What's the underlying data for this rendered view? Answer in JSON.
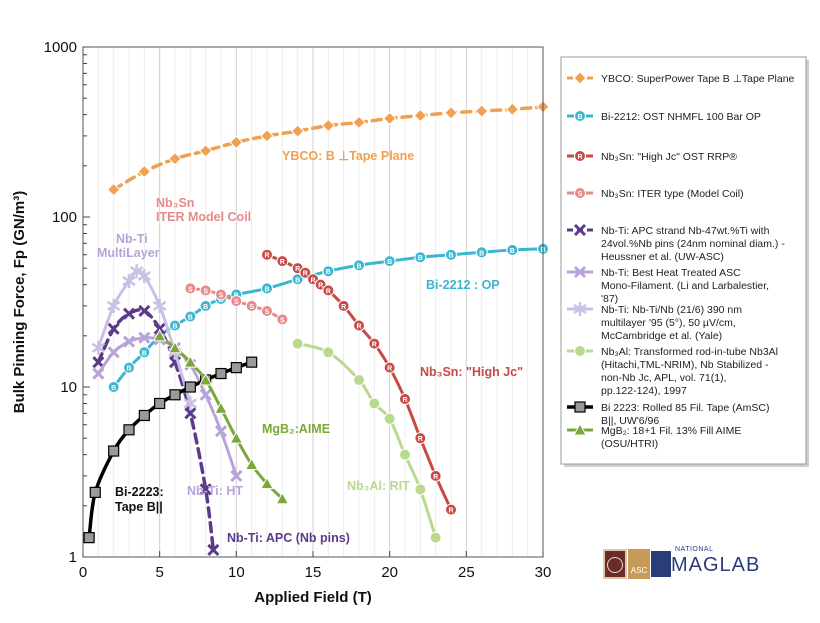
{
  "chart_data": {
    "type": "line",
    "xlabel": "Applied Field (T)",
    "ylabel": "Bulk Pinning Force, Fp (GN/m³)",
    "xlim": [
      0,
      30
    ],
    "ylim": [
      1,
      1000
    ],
    "yscale": "log",
    "x_ticks": [
      "0",
      "5",
      "10",
      "15",
      "20",
      "25",
      "30"
    ],
    "y_ticks": [
      "1",
      "10",
      "100",
      "1000"
    ],
    "grid": "vertical",
    "legend_position": "right",
    "series": [
      {
        "name": "YBCO: SuperPower Tape B ⊥Tape Plane",
        "color": "#F0A050",
        "line": "dashed",
        "marker": "Y",
        "x": [
          2,
          4,
          6,
          8,
          10,
          12,
          14,
          16,
          18,
          20,
          22,
          24,
          26,
          28,
          30
        ],
        "y": [
          145,
          185,
          220,
          245,
          275,
          300,
          320,
          345,
          360,
          380,
          395,
          410,
          420,
          430,
          445
        ]
      },
      {
        "name": "Bi-2212: OST NHMFL 100 Bar OP",
        "color": "#3BB5D0",
        "line": "solid",
        "marker": "B",
        "x": [
          2,
          3,
          4,
          5,
          6,
          7,
          8,
          9,
          10,
          12,
          14,
          16,
          18,
          20,
          22,
          24,
          26,
          28,
          30
        ],
        "y": [
          10,
          13,
          16,
          20,
          23,
          26,
          30,
          33,
          35,
          38,
          43,
          48,
          52,
          55,
          58,
          60,
          62,
          64,
          65
        ]
      },
      {
        "name": "Nb₃Sn: \"High Jc\" OST RRP®",
        "color": "#C84A45",
        "line": "solid",
        "marker": "R",
        "x": [
          12,
          13,
          14,
          14.5,
          15,
          15.5,
          16,
          17,
          18,
          19,
          20,
          21,
          22,
          23,
          24
        ],
        "y": [
          60,
          55,
          50,
          47,
          43,
          40,
          37,
          30,
          23,
          18,
          13,
          8.5,
          5,
          3,
          1.9
        ]
      },
      {
        "name": "Nb₃Sn: ITER type (Model Coil)",
        "color": "#E58B8B",
        "line": "solid",
        "marker": "S",
        "x": [
          7,
          8,
          9,
          10,
          11,
          12,
          13
        ],
        "y": [
          38,
          37,
          35,
          32,
          30,
          28,
          25
        ]
      },
      {
        "name": "Nb-Ti:  APC strand Nb-47wt.%Ti with 24vol.%Nb pins (24nm nominal diam.) - Heussner et al. (UW-ASC)",
        "color": "#5B3A8C",
        "line": "dashed",
        "marker": "X",
        "x": [
          1,
          2,
          3,
          4,
          5,
          6,
          7,
          8,
          8.5
        ],
        "y": [
          14,
          22,
          27,
          28,
          22,
          14,
          7,
          2.5,
          1.1
        ]
      },
      {
        "name": "Nb-Ti: Best Heat Treated ASC Mono-Filament. (Li and Larbalestier, '87)",
        "color": "#B7A3D9",
        "line": "solid",
        "marker": "X",
        "x": [
          1,
          2,
          3,
          4,
          5,
          6,
          7,
          8,
          9,
          10
        ],
        "y": [
          12,
          16,
          18.5,
          19.5,
          19,
          17,
          13.5,
          9,
          5.5,
          3
        ]
      },
      {
        "name": "Nb-Ti: Nb-Ti/Nb (21/6) 390 nm multilayer '95 (5°), 50 µV/cm, McCambridge et al. (Yale)",
        "color": "#C9C0E6",
        "line": "solid",
        "marker": "*",
        "x": [
          1,
          2,
          3,
          3.5,
          4,
          5,
          6,
          7
        ],
        "y": [
          17,
          30,
          42,
          48,
          45,
          30,
          16,
          8
        ]
      },
      {
        "name": "Nb₃Al: Transformed rod-in-tube Nb3Al (Hitachi,TML-NRIM), Nb Stabilized - non-Nb Jc, APL, vol. 71(1), pp.122-124), 1997",
        "color": "#B9D98E",
        "line": "solid",
        "marker": "o",
        "x": [
          14,
          16,
          18,
          19,
          20,
          21,
          22,
          23
        ],
        "y": [
          18,
          16,
          11,
          8,
          6.5,
          4,
          2.5,
          1.3
        ]
      },
      {
        "name": "Bi 2223: Rolled 85 Fil. Tape (AmSC) B||, UW'6/96",
        "color": "#000000",
        "line": "solid",
        "marker": "square",
        "x": [
          0.4,
          0.8,
          2,
          3,
          4,
          5,
          6,
          7,
          8,
          9,
          10,
          11
        ],
        "y": [
          1.3,
          2.4,
          4.2,
          5.6,
          6.8,
          8,
          9,
          10,
          11,
          12,
          13,
          14
        ]
      },
      {
        "name": "MgB₂: 18+1 Fil. 13% Fill AIME (OSU/HTRI)",
        "color": "#7AA83A",
        "line": "solid",
        "marker": "M",
        "x": [
          5,
          6,
          7,
          8,
          9,
          10,
          11,
          12,
          13
        ],
        "y": [
          20,
          17,
          14,
          11,
          7.5,
          5,
          3.5,
          2.7,
          2.2
        ]
      }
    ],
    "annotations": [
      {
        "text": "YBCO: B ⊥Tape Plane",
        "color": "#F0A050"
      },
      {
        "text": "Nb₃Sn",
        "color": "#E58B8B"
      },
      {
        "text": "ITER Model Coil",
        "color": "#E58B8B"
      },
      {
        "text": "Nb-Ti",
        "color": "#B7A3D9"
      },
      {
        "text": "MultiLayer",
        "color": "#B7A3D9"
      },
      {
        "text": "Bi-2212 : OP",
        "color": "#3BB5D0"
      },
      {
        "text": "Nb₃Sn: \"High Jc\"",
        "color": "#C84A45"
      },
      {
        "text": "MgB₂:AIME",
        "color": "#7AA83A"
      },
      {
        "text": "Nb₃Al: RIT",
        "color": "#B9D98E"
      },
      {
        "text": "Nb-Ti: HT",
        "color": "#B7A3D9"
      },
      {
        "text": "Bi-2223:",
        "color": "#111111"
      },
      {
        "text": "Tape B||",
        "color": "#111111"
      },
      {
        "text": "Nb-Ti: APC (Nb pins)",
        "color": "#5B3A8C"
      }
    ]
  },
  "logos": {
    "asc": "ASC",
    "national": "NATIONAL",
    "maglab": "MAGLAB"
  }
}
